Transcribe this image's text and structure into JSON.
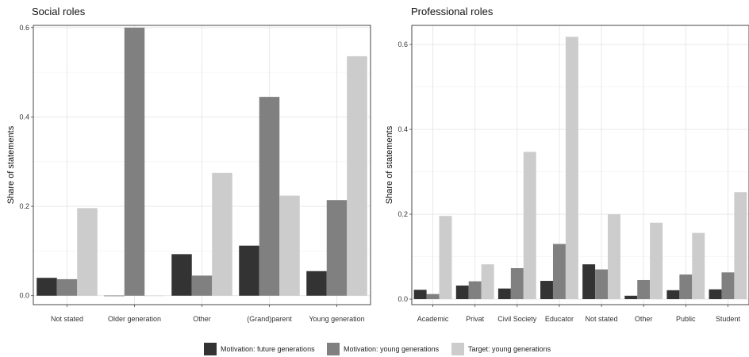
{
  "legend": [
    {
      "label": "Motivation: future generations",
      "color": "#333333"
    },
    {
      "label": "Motivation: young generations",
      "color": "#808080"
    },
    {
      "label": "Target: young generations",
      "color": "#cccccc"
    }
  ],
  "chart_data": [
    {
      "type": "bar",
      "title": "Social roles",
      "ylabel": "Share of statements",
      "xlabel": "",
      "ylim": [
        -0.02,
        0.605
      ],
      "yticks": [
        "0.0",
        "0.2",
        "0.4",
        "0.6"
      ],
      "grid": true,
      "categories": [
        "Not stated",
        "Older generation",
        "Other",
        "(Grand)parent",
        "Young generation"
      ],
      "series": [
        {
          "name": "Motivation: future generations",
          "values": [
            0.04,
            0.0,
            0.093,
            0.112,
            0.055
          ]
        },
        {
          "name": "Motivation: young generations",
          "values": [
            0.037,
            0.6,
            0.045,
            0.445,
            0.214
          ]
        },
        {
          "name": "Target: young generations",
          "values": [
            0.196,
            0.0,
            0.275,
            0.224,
            0.536
          ]
        }
      ]
    },
    {
      "type": "bar",
      "title": "Professional roles",
      "ylabel": "Share of statements",
      "xlabel": "",
      "ylim": [
        -0.013,
        0.645
      ],
      "yticks": [
        "0.0",
        "0.2",
        "0.4",
        "0.6"
      ],
      "grid": true,
      "categories": [
        "Academic",
        "Privat",
        "Civil Society",
        "Educator",
        "Not stated",
        "Other",
        "Public",
        "Student"
      ],
      "series": [
        {
          "name": "Motivation: future generations",
          "values": [
            0.022,
            0.032,
            0.025,
            0.043,
            0.082,
            0.008,
            0.021,
            0.023
          ]
        },
        {
          "name": "Motivation: young generations",
          "values": [
            0.012,
            0.042,
            0.073,
            0.13,
            0.07,
            0.045,
            0.058,
            0.063
          ]
        },
        {
          "name": "Target: young generations",
          "values": [
            0.196,
            0.082,
            0.347,
            0.618,
            0.2,
            0.18,
            0.156,
            0.252
          ]
        }
      ]
    }
  ]
}
